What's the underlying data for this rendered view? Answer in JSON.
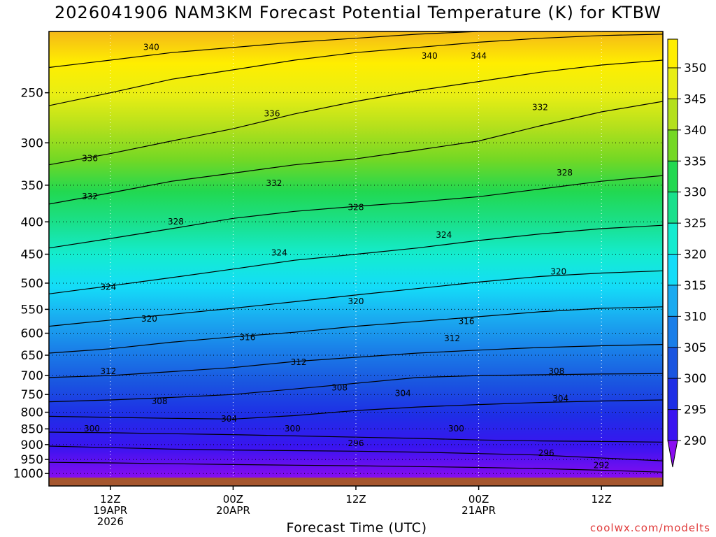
{
  "title": "2026041906 NAM3KM Forecast Potential Temperature (K) for KTBW",
  "chart_data": {
    "type": "heatmap",
    "variable": "Potential Temperature (K)",
    "xlabel": "Forecast Time (UTC)",
    "ylabel": "",
    "x_ticks": [
      {
        "hours": 6,
        "lines": [
          "12Z",
          "19APR",
          "2026"
        ]
      },
      {
        "hours": 18,
        "lines": [
          "00Z",
          "20APR"
        ]
      },
      {
        "hours": 30,
        "lines": [
          "12Z"
        ]
      },
      {
        "hours": 42,
        "lines": [
          "00Z",
          "21APR"
        ]
      },
      {
        "hours": 54,
        "lines": [
          "12Z"
        ]
      }
    ],
    "x_range_hours": [
      0,
      60
    ],
    "y_ticks_hpa": [
      250,
      300,
      350,
      400,
      450,
      500,
      550,
      600,
      650,
      700,
      750,
      800,
      850,
      900,
      950,
      1000
    ],
    "y_range_hpa": [
      200,
      1020
    ],
    "y_scale": "log-pressure",
    "colorbar_levels": [
      290,
      295,
      300,
      305,
      310,
      315,
      320,
      325,
      330,
      335,
      340,
      345,
      350
    ],
    "colorbar_colors": [
      "#8a0cf0",
      "#3a14f0",
      "#1e2ee6",
      "#1a55e0",
      "#1a7ee8",
      "#1aaaf0",
      "#14dcf8",
      "#14ecd0",
      "#1ae08c",
      "#22d850",
      "#74d824",
      "#b4e01c",
      "#e8ee14",
      "#ffee00",
      "#f4b818"
    ],
    "isotherms": [
      {
        "theta": 292,
        "p": [
          960,
          962,
          965,
          968,
          970,
          972,
          975,
          978,
          982,
          988,
          995
        ]
      },
      {
        "theta": 296,
        "p": [
          905,
          910,
          915,
          918,
          920,
          922,
          925,
          930,
          935,
          945,
          955
        ]
      },
      {
        "theta": 300,
        "p": [
          860,
          862,
          865,
          868,
          872,
          876,
          880,
          885,
          888,
          890,
          892
        ]
      },
      {
        "theta": 304,
        "p": [
          812,
          815,
          818,
          820,
          810,
          795,
          785,
          778,
          772,
          768,
          765
        ]
      },
      {
        "theta": 308,
        "p": [
          770,
          765,
          758,
          750,
          735,
          720,
          705,
          700,
          698,
          696,
          695
        ]
      },
      {
        "theta": 312,
        "p": [
          705,
          700,
          690,
          680,
          665,
          655,
          645,
          638,
          632,
          628,
          625
        ]
      },
      {
        "theta": 316,
        "p": [
          645,
          635,
          620,
          608,
          598,
          585,
          575,
          565,
          555,
          548,
          545
        ]
      },
      {
        "theta": 320,
        "p": [
          585,
          572,
          560,
          548,
          535,
          522,
          510,
          498,
          488,
          482,
          478
        ]
      },
      {
        "theta": 324,
        "p": [
          520,
          505,
          490,
          475,
          460,
          450,
          440,
          428,
          418,
          410,
          405
        ]
      },
      {
        "theta": 328,
        "p": [
          440,
          425,
          410,
          395,
          385,
          378,
          372,
          365,
          355,
          345,
          338
        ]
      },
      {
        "theta": 332,
        "p": [
          375,
          360,
          345,
          335,
          325,
          318,
          308,
          298,
          282,
          268,
          258
        ]
      },
      {
        "theta": 336,
        "p": [
          325,
          312,
          298,
          285,
          270,
          258,
          248,
          240,
          232,
          226,
          222
        ]
      },
      {
        "theta": 340,
        "p": [
          262,
          250,
          238,
          230,
          222,
          216,
          212,
          208,
          205,
          203,
          202
        ]
      },
      {
        "theta": 344,
        "p": [
          228,
          222,
          216,
          212,
          208,
          205,
          202,
          200,
          199,
          198,
          198
        ]
      }
    ],
    "contour_labels": [
      {
        "text": "340",
        "hours": 10,
        "p": 212
      },
      {
        "text": "340",
        "hours": 37.2,
        "p": 219
      },
      {
        "text": "344",
        "hours": 42,
        "p": 219
      },
      {
        "text": "336",
        "hours": 21.8,
        "p": 270
      },
      {
        "text": "332",
        "hours": 48,
        "p": 264
      },
      {
        "text": "336",
        "hours": 4,
        "p": 318
      },
      {
        "text": "328",
        "hours": 50.4,
        "p": 335
      },
      {
        "text": "332",
        "hours": 22,
        "p": 348
      },
      {
        "text": "332",
        "hours": 4,
        "p": 365
      },
      {
        "text": "328",
        "hours": 30,
        "p": 380
      },
      {
        "text": "328",
        "hours": 12.4,
        "p": 400
      },
      {
        "text": "324",
        "hours": 38.6,
        "p": 420
      },
      {
        "text": "324",
        "hours": 22.5,
        "p": 448
      },
      {
        "text": "320",
        "hours": 49.8,
        "p": 480
      },
      {
        "text": "324",
        "hours": 5.8,
        "p": 508
      },
      {
        "text": "320",
        "hours": 30,
        "p": 535
      },
      {
        "text": "316",
        "hours": 40.8,
        "p": 575
      },
      {
        "text": "320",
        "hours": 9.8,
        "p": 570
      },
      {
        "text": "316",
        "hours": 19.4,
        "p": 610
      },
      {
        "text": "312",
        "hours": 39.4,
        "p": 612
      },
      {
        "text": "312",
        "hours": 24.4,
        "p": 668
      },
      {
        "text": "308",
        "hours": 49.6,
        "p": 690
      },
      {
        "text": "312",
        "hours": 5.8,
        "p": 690
      },
      {
        "text": "308",
        "hours": 28.4,
        "p": 733
      },
      {
        "text": "304",
        "hours": 34.6,
        "p": 748
      },
      {
        "text": "308",
        "hours": 10.8,
        "p": 770
      },
      {
        "text": "304",
        "hours": 50,
        "p": 762
      },
      {
        "text": "304",
        "hours": 17.6,
        "p": 820
      },
      {
        "text": "300",
        "hours": 23.8,
        "p": 850
      },
      {
        "text": "300",
        "hours": 4.2,
        "p": 850
      },
      {
        "text": "300",
        "hours": 39.8,
        "p": 850
      },
      {
        "text": "296",
        "hours": 30,
        "p": 897
      },
      {
        "text": "296",
        "hours": 48.6,
        "p": 930
      },
      {
        "text": "292",
        "hours": 54,
        "p": 972
      }
    ]
  },
  "credit": "coolwx.com/modelts"
}
